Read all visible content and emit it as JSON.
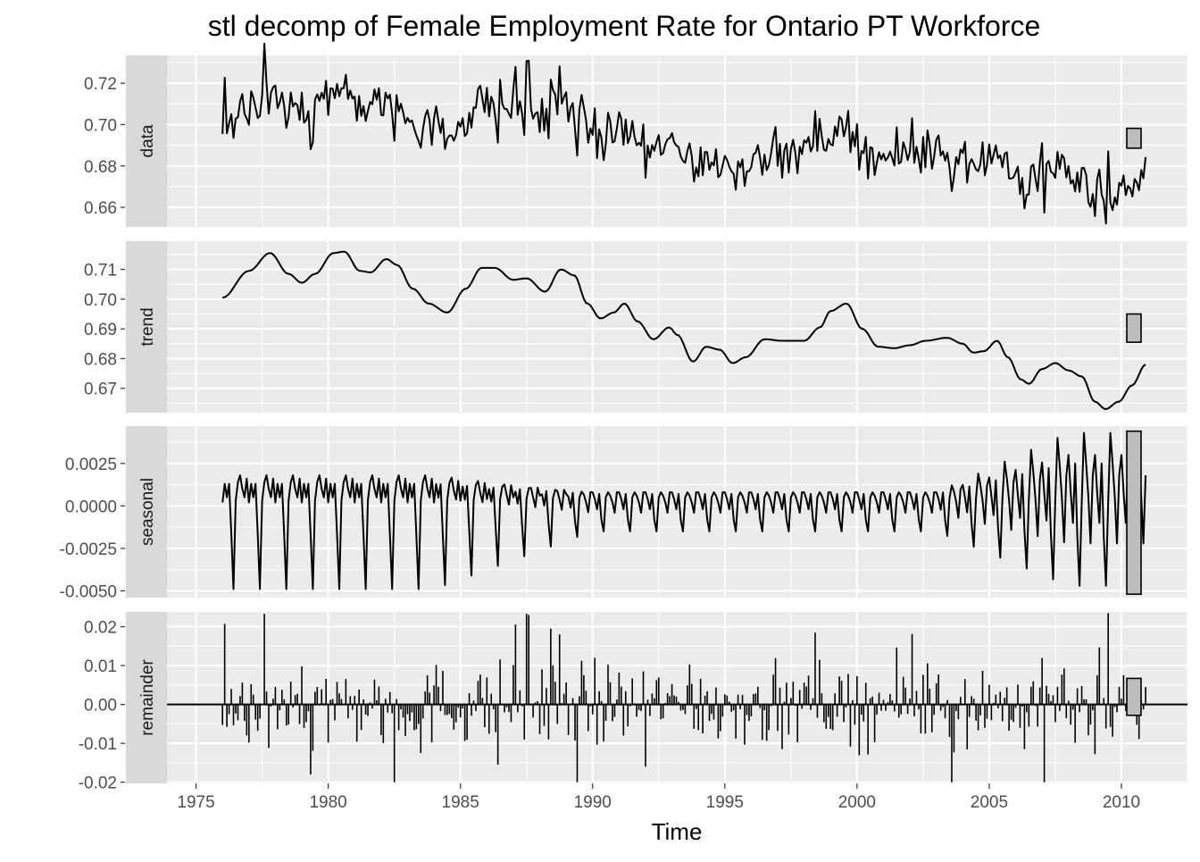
{
  "chart_data": {
    "type": "line",
    "title": "stl decomp of Female Employment Rate for Ontario PT Workforce",
    "xlabel": "Time",
    "x_ticks": [
      "1975",
      "1980",
      "1985",
      "1990",
      "1995",
      "2000",
      "2005",
      "2010"
    ],
    "x_range": [
      1973.9,
      2012.5
    ],
    "frequency": "monthly",
    "grid": true,
    "panels": [
      {
        "name": "data",
        "ylim": [
          0.6505,
          0.7335
        ],
        "y_ticks": [
          "0.72",
          "0.70",
          "0.68",
          "0.66"
        ],
        "start": 1976.0,
        "end": 2010.92,
        "mean": 0.69,
        "min": 0.651,
        "max": 0.731,
        "range_bar": [
          0.6886,
          0.6982
        ]
      },
      {
        "name": "trend",
        "ylim": [
          0.6618,
          0.7195
        ],
        "y_ticks": [
          "0.71",
          "0.70",
          "0.69",
          "0.68",
          "0.67"
        ],
        "knots": [
          [
            1976.0,
            0.7005
          ],
          [
            1977.0,
            0.7095
          ],
          [
            1977.8,
            0.7155
          ],
          [
            1978.5,
            0.7085
          ],
          [
            1979.0,
            0.7055
          ],
          [
            1979.5,
            0.7085
          ],
          [
            1980.2,
            0.7155
          ],
          [
            1980.6,
            0.716
          ],
          [
            1981.2,
            0.7095
          ],
          [
            1981.6,
            0.709
          ],
          [
            1982.2,
            0.7135
          ],
          [
            1982.6,
            0.7115
          ],
          [
            1983.2,
            0.7035
          ],
          [
            1983.8,
            0.6985
          ],
          [
            1984.5,
            0.6955
          ],
          [
            1985.2,
            0.7035
          ],
          [
            1985.8,
            0.7105
          ],
          [
            1986.3,
            0.7105
          ],
          [
            1987.0,
            0.7065
          ],
          [
            1987.5,
            0.707
          ],
          [
            1988.2,
            0.7025
          ],
          [
            1988.8,
            0.71
          ],
          [
            1989.3,
            0.708
          ],
          [
            1989.8,
            0.6985
          ],
          [
            1990.3,
            0.6935
          ],
          [
            1990.8,
            0.6955
          ],
          [
            1991.2,
            0.6985
          ],
          [
            1991.7,
            0.6925
          ],
          [
            1992.3,
            0.6865
          ],
          [
            1992.9,
            0.6905
          ],
          [
            1993.2,
            0.688
          ],
          [
            1993.8,
            0.679
          ],
          [
            1994.3,
            0.684
          ],
          [
            1994.8,
            0.683
          ],
          [
            1995.3,
            0.6785
          ],
          [
            1995.8,
            0.6805
          ],
          [
            1996.5,
            0.6865
          ],
          [
            1997.2,
            0.686
          ],
          [
            1998.0,
            0.686
          ],
          [
            1998.6,
            0.6905
          ],
          [
            1999.0,
            0.696
          ],
          [
            1999.6,
            0.6985
          ],
          [
            2000.2,
            0.69
          ],
          [
            2000.8,
            0.684
          ],
          [
            2001.4,
            0.6835
          ],
          [
            2002.0,
            0.6845
          ],
          [
            2002.6,
            0.686
          ],
          [
            2003.4,
            0.687
          ],
          [
            2004.0,
            0.685
          ],
          [
            2004.4,
            0.682
          ],
          [
            2004.8,
            0.6825
          ],
          [
            2005.3,
            0.686
          ],
          [
            2005.7,
            0.6805
          ],
          [
            2006.2,
            0.673
          ],
          [
            2006.5,
            0.6715
          ],
          [
            2007.0,
            0.6765
          ],
          [
            2007.5,
            0.6785
          ],
          [
            2008.0,
            0.676
          ],
          [
            2008.5,
            0.674
          ],
          [
            2009.0,
            0.6655
          ],
          [
            2009.4,
            0.663
          ],
          [
            2009.9,
            0.6655
          ],
          [
            2010.4,
            0.671
          ],
          [
            2010.92,
            0.678
          ]
        ],
        "range_bar": [
          0.6855,
          0.695
        ]
      },
      {
        "name": "seasonal",
        "ylim": [
          -0.0054,
          0.0047
        ],
        "y_ticks": [
          "0.0025",
          "0.0000",
          "-0.0025",
          "-0.0050"
        ],
        "pattern_early": [
          0.0002,
          0.0013,
          0.0005,
          0.0013,
          -0.0017,
          -0.0049,
          0.0003,
          0.0014,
          0.0018,
          0.001,
          0.0005,
          0.0016
        ],
        "pattern_mid": [
          0.0008,
          0.0004,
          -0.0002,
          0.0007,
          -0.0008,
          -0.0015,
          0.0005,
          0.0008,
          0.0006,
          0.0002,
          -0.0004,
          0.0008
        ],
        "pattern_late": [
          0.003,
          0.0008,
          -0.001,
          0.0025,
          -0.0018,
          -0.0047,
          0.0003,
          0.0043,
          0.0025,
          0.0005,
          -0.0022,
          0.0018
        ],
        "range_bar": [
          -0.0052,
          0.0044
        ]
      },
      {
        "name": "remainder",
        "ylim": [
          -0.0203,
          0.0238
        ],
        "y_ticks": [
          "0.02",
          "0.01",
          "0.00",
          "-0.01",
          "-0.02"
        ],
        "min": -0.02,
        "max": 0.0233,
        "range_bar": [
          -0.0028,
          0.0067
        ]
      }
    ],
    "range_bar_color": "#bdbdbd"
  }
}
